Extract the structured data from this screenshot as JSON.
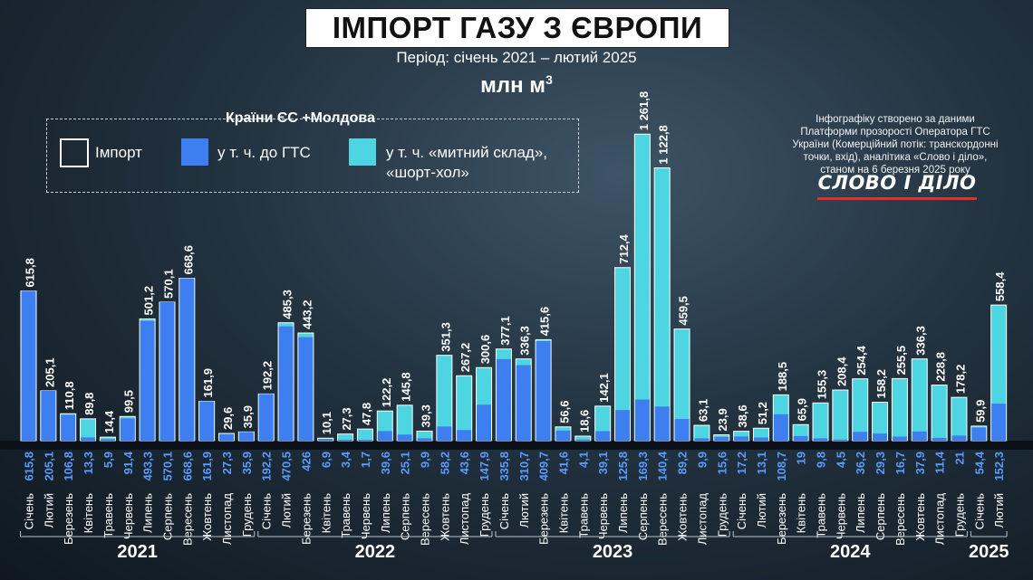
{
  "header": {
    "title": "ІМПОРТ ГАЗУ З ЄВРОПИ",
    "subtitle": "Період: січень 2021 – лютий 2025",
    "unit_prefix": "млн м",
    "unit_exp": "3"
  },
  "legend": {
    "title": "Країни ЄС +Молдова",
    "items": [
      {
        "label": "Імпорт",
        "color": "none"
      },
      {
        "label": "у т. ч. до ГТС",
        "color": "#3d7ff0"
      },
      {
        "label_line1": "у т. ч. «митний склад»,",
        "label_line2": "«шорт-хол»",
        "color": "#4dd5e2"
      }
    ]
  },
  "credit": {
    "lines": [
      "Інфографіку створено за даними",
      "Платформи прозорості Оператора ГТС",
      "України (Комерційний потік: транскордонні",
      "точки, вхід), аналітика «Слово і діло»,",
      "станом на 6 березня 2025 року"
    ],
    "logo": "СЛОВО І ДІЛО"
  },
  "colors": {
    "gts": "#3d7ff0",
    "customs": "#4dd5e2",
    "gts_label": "#5a9bff"
  },
  "chart_data": {
    "type": "bar",
    "categories": [
      "Січень",
      "Лютий",
      "Березень",
      "Квітень",
      "Травень",
      "Червень",
      "Липень",
      "Серпень",
      "Вересень",
      "Жовтень",
      "Листопад",
      "Грудень",
      "Січень",
      "Лютий",
      "Березень",
      "Квітень",
      "Травень",
      "Червень",
      "Липень",
      "Серпень",
      "Вересень",
      "Жовтень",
      "Листопад",
      "Грудень",
      "Січень",
      "Лютий",
      "Березень",
      "Квітень",
      "Травень",
      "Червень",
      "Липень",
      "Серпень",
      "Вересень",
      "Жовтень",
      "Листопад",
      "Грудень",
      "Січень",
      "Лютий",
      "Березень",
      "Квітень",
      "Травень",
      "Червень",
      "Липень",
      "Серпень",
      "Вересень",
      "Жовтень",
      "Листопад",
      "Грудень",
      "Січень",
      "Лютий"
    ],
    "years": [
      {
        "label": "2021",
        "from": 0,
        "to": 11
      },
      {
        "label": "2022",
        "from": 12,
        "to": 23
      },
      {
        "label": "2023",
        "from": 24,
        "to": 35
      },
      {
        "label": "2024",
        "from": 36,
        "to": 47
      },
      {
        "label": "2025",
        "from": 48,
        "to": 49
      }
    ],
    "series": [
      {
        "name": "Імпорт",
        "labels": [
          "615,8",
          "205,1",
          "110,8",
          "89,8",
          "14,4",
          "99,5",
          "501,2",
          "570,1",
          "668,6",
          "161,9",
          "29,6",
          "35,9",
          "192,2",
          "485,3",
          "443,2",
          "10,1",
          "27,3",
          "47,8",
          "122,2",
          "145,8",
          "39,3",
          "351,3",
          "267,2",
          "300,6",
          "377,1",
          "336,3",
          "415,6",
          "56,6",
          "18,6",
          "142,1",
          "712,4",
          "1 261,8",
          "1 122,8",
          "459,5",
          "63,1",
          "23,9",
          "38,6",
          "51,2",
          "188,5",
          "65,9",
          "155,3",
          "208,4",
          "254,4",
          "158,2",
          "255,5",
          "336,3",
          "228,8",
          "178,2",
          "59,9",
          "558,4"
        ],
        "values": [
          615.8,
          205.1,
          110.8,
          89.8,
          14.4,
          99.5,
          501.2,
          570.1,
          668.6,
          161.9,
          29.6,
          35.9,
          192.2,
          485.3,
          443.2,
          10.1,
          27.3,
          47.8,
          122.2,
          145.8,
          39.3,
          351.3,
          267.2,
          300.6,
          377.1,
          336.3,
          415.6,
          56.6,
          18.6,
          142.1,
          712.4,
          1261.8,
          1122.8,
          459.5,
          63.1,
          23.9,
          38.6,
          51.2,
          188.5,
          65.9,
          155.3,
          208.4,
          254.4,
          158.2,
          255.5,
          336.3,
          228.8,
          178.2,
          59.9,
          558.4
        ]
      },
      {
        "name": "у т. ч. до ГТС",
        "labels": [
          "615,8",
          "205,1",
          "106,8",
          "13,3",
          "5,9",
          "91,4",
          "493,3",
          "570,1",
          "668,6",
          "161,9",
          "27,3",
          "35,9",
          "192,2",
          "470,5",
          "426",
          "6,9",
          "3,4",
          "1,7",
          "39,6",
          "25,1",
          "9,9",
          "58,2",
          "43,6",
          "147,9",
          "335,8",
          "310,7",
          "409,7",
          "41,6",
          "4,1",
          "39,1",
          "125,8",
          "169,3",
          "140,4",
          "89,2",
          "9,9",
          "15,6",
          "17,2",
          "13,1",
          "108,7",
          "19",
          "9,8",
          "4,5",
          "36,2",
          "29,3",
          "16,7",
          "37,9",
          "11,4",
          "21",
          "54,4",
          "152,3"
        ],
        "values": [
          615.8,
          205.1,
          106.8,
          13.3,
          5.9,
          91.4,
          493.3,
          570.1,
          668.6,
          161.9,
          27.3,
          35.9,
          192.2,
          470.5,
          426,
          6.9,
          3.4,
          1.7,
          39.6,
          25.1,
          9.9,
          58.2,
          43.6,
          147.9,
          335.8,
          310.7,
          409.7,
          41.6,
          4.1,
          39.1,
          125.8,
          169.3,
          140.4,
          89.2,
          9.9,
          15.6,
          17.2,
          13.1,
          108.7,
          19,
          9.8,
          4.5,
          36.2,
          29.3,
          16.7,
          37.9,
          11.4,
          21,
          54.4,
          152.3
        ]
      }
    ],
    "ylim": [
      0,
      1300
    ]
  }
}
